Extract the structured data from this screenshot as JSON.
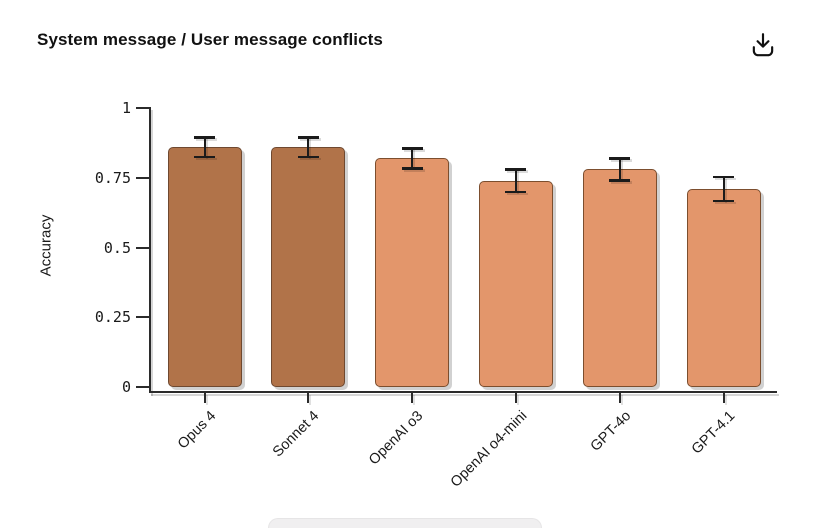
{
  "header": {
    "title": "System message / User message conflicts",
    "download_icon": "download-icon"
  },
  "chart_data": {
    "type": "bar",
    "title": "System message / User message conflicts",
    "xlabel": "",
    "ylabel": "Accuracy",
    "categories": [
      "Opus 4",
      "Sonnet 4",
      "OpenAI o3",
      "OpenAI o4-mini",
      "GPT-4o",
      "GPT-4.1"
    ],
    "values": [
      0.86,
      0.86,
      0.82,
      0.74,
      0.78,
      0.71
    ],
    "error_bars": [
      0.035,
      0.035,
      0.036,
      0.04,
      0.039,
      0.043
    ],
    "bar_colors": [
      "#B17349",
      "#B17349",
      "#E3966B",
      "#E3966B",
      "#E3966B",
      "#E3966B"
    ],
    "bar_border_colors": [
      "#6F4930",
      "#6F4930",
      "#7C4E2E",
      "#7C4E2E",
      "#7C4E2E",
      "#7C4E2E"
    ],
    "ylim": [
      0,
      1
    ],
    "yticks": [
      0,
      0.25,
      0.5,
      0.75,
      1
    ],
    "ytick_labels": [
      "0",
      "0.25",
      "0.5",
      "0.75",
      "1"
    ],
    "grid": false,
    "legend_position": "none"
  },
  "colors": {
    "background": "#ffffff",
    "title_text": "#111111",
    "axis": "#2b2b2b",
    "tick_text": "#1a1a1a",
    "error_bar": "#1b1b1b",
    "bar_dark": "#B17349",
    "bar_light": "#E3966B",
    "bottom_panel": "#f0eff0"
  }
}
